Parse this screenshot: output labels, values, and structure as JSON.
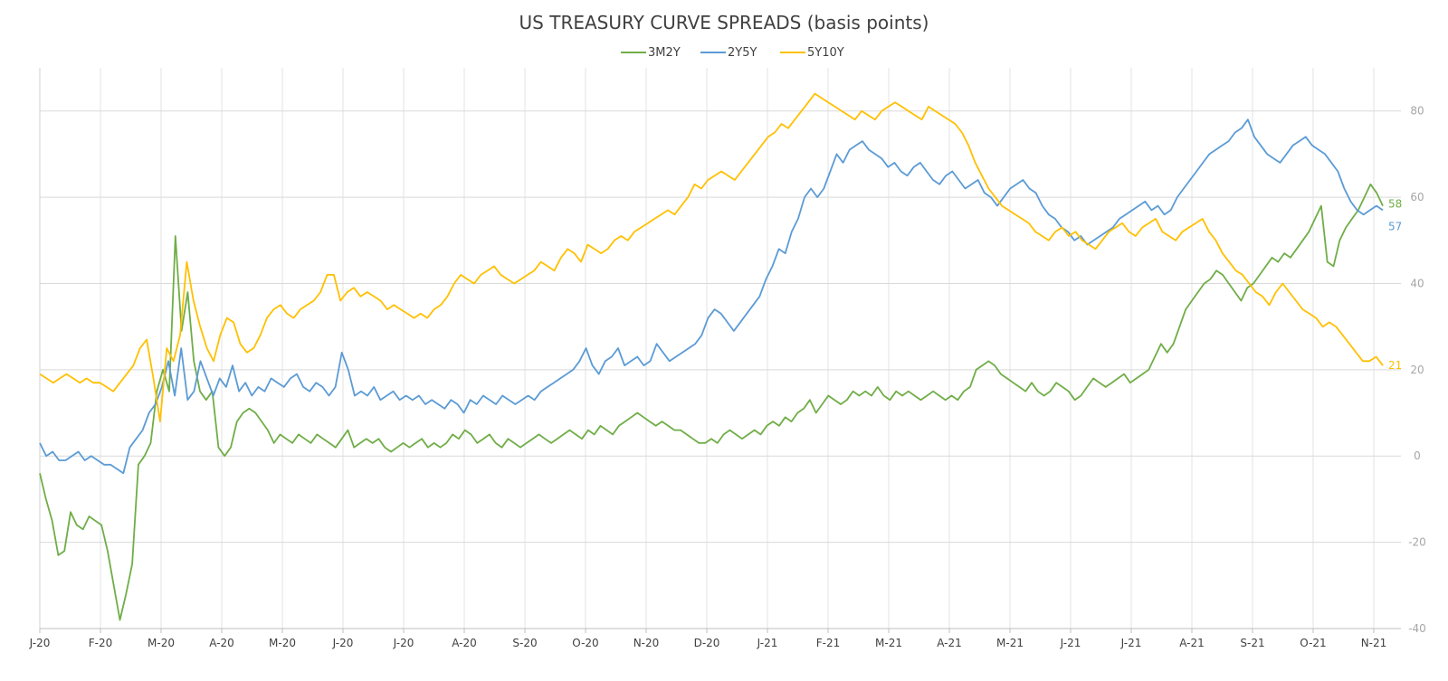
{
  "chart_data": {
    "type": "line",
    "title": "US TREASURY CURVE SPREADS (basis points)",
    "xlabel": "",
    "ylabel": "",
    "ylim": [
      -40,
      90
    ],
    "yticks": [
      80,
      60,
      40,
      20,
      0,
      -20,
      -40
    ],
    "grid": "horizontal and vertical",
    "legend_position": "top-center",
    "x_ticks": [
      "J-20",
      "F-20",
      "M-20",
      "A-20",
      "M-20",
      "J-20",
      "J-20",
      "A-20",
      "S-20",
      "O-20",
      "N-20",
      "D-20",
      "J-21",
      "F-21",
      "M-21",
      "A-21",
      "M-21",
      "J-21",
      "J-21",
      "A-21",
      "S-21",
      "O-21",
      "N-21"
    ],
    "series": [
      {
        "name": "3M2Y",
        "color": "#70ad47",
        "end_label": "58",
        "values": [
          -4,
          -10,
          -15,
          -23,
          -22,
          -13,
          -16,
          -17,
          -14,
          -15,
          -16,
          -22,
          -30,
          -38,
          -32,
          -25,
          -2,
          0,
          3,
          15,
          20,
          15,
          51,
          29,
          38,
          22,
          15,
          13,
          15,
          2,
          0,
          2,
          8,
          10,
          11,
          10,
          8,
          6,
          3,
          5,
          4,
          3,
          5,
          4,
          3,
          5,
          4,
          3,
          2,
          4,
          6,
          2,
          3,
          4,
          3,
          4,
          2,
          1,
          2,
          3,
          2,
          3,
          4,
          2,
          3,
          2,
          3,
          5,
          4,
          6,
          5,
          3,
          4,
          5,
          3,
          2,
          4,
          3,
          2,
          3,
          4,
          5,
          4,
          3,
          4,
          5,
          6,
          5,
          4,
          6,
          5,
          7,
          6,
          5,
          7,
          8,
          9,
          10,
          9,
          8,
          7,
          8,
          7,
          6,
          6,
          5,
          4,
          3,
          3,
          4,
          3,
          5,
          6,
          5,
          4,
          5,
          6,
          5,
          7,
          8,
          7,
          9,
          8,
          10,
          11,
          13,
          10,
          12,
          14,
          13,
          12,
          13,
          15,
          14,
          15,
          14,
          16,
          14,
          13,
          15,
          14,
          15,
          14,
          13,
          14,
          15,
          14,
          13,
          14,
          13,
          15,
          16,
          20,
          21,
          22,
          21,
          19,
          18,
          17,
          16,
          15,
          17,
          15,
          14,
          15,
          17,
          16,
          15,
          13,
          14,
          16,
          18,
          17,
          16,
          17,
          18,
          19,
          17,
          18,
          19,
          20,
          23,
          26,
          24,
          26,
          30,
          34,
          36,
          38,
          40,
          41,
          43,
          42,
          40,
          38,
          36,
          39,
          40,
          42,
          44,
          46,
          45,
          47,
          46,
          48,
          50,
          52,
          55,
          58,
          45,
          44,
          50,
          53,
          55,
          57,
          60,
          63,
          61,
          58
        ]
      },
      {
        "name": "2Y5Y",
        "color": "#5b9bd5",
        "end_label": "57",
        "values": [
          3,
          0,
          1,
          -1,
          -1,
          0,
          1,
          -1,
          0,
          -1,
          -2,
          -2,
          -3,
          -4,
          2,
          4,
          6,
          10,
          12,
          16,
          22,
          14,
          25,
          13,
          15,
          22,
          18,
          14,
          18,
          16,
          21,
          15,
          17,
          14,
          16,
          15,
          18,
          17,
          16,
          18,
          19,
          16,
          15,
          17,
          16,
          14,
          16,
          24,
          20,
          14,
          15,
          14,
          16,
          13,
          14,
          15,
          13,
          14,
          13,
          14,
          12,
          13,
          12,
          11,
          13,
          12,
          10,
          13,
          12,
          14,
          13,
          12,
          14,
          13,
          12,
          13,
          14,
          13,
          15,
          16,
          17,
          18,
          19,
          20,
          22,
          25,
          21,
          19,
          22,
          23,
          25,
          21,
          22,
          23,
          21,
          22,
          26,
          24,
          22,
          23,
          24,
          25,
          26,
          28,
          32,
          34,
          33,
          31,
          29,
          31,
          33,
          35,
          37,
          41,
          44,
          48,
          47,
          52,
          55,
          60,
          62,
          60,
          62,
          66,
          70,
          68,
          71,
          72,
          73,
          71,
          70,
          69,
          67,
          68,
          66,
          65,
          67,
          68,
          66,
          64,
          63,
          65,
          66,
          64,
          62,
          63,
          64,
          61,
          60,
          58,
          60,
          62,
          63,
          64,
          62,
          61,
          58,
          56,
          55,
          53,
          52,
          50,
          51,
          49,
          50,
          51,
          52,
          53,
          55,
          56,
          57,
          58,
          59,
          57,
          58,
          56,
          57,
          60,
          62,
          64,
          66,
          68,
          70,
          71,
          72,
          73,
          75,
          76,
          78,
          74,
          72,
          70,
          69,
          68,
          70,
          72,
          73,
          74,
          72,
          71,
          70,
          68,
          66,
          62,
          59,
          57,
          56,
          57,
          58,
          57
        ]
      },
      {
        "name": "5Y10Y",
        "color": "#ffc000",
        "end_label": "21",
        "values": [
          19,
          18,
          17,
          18,
          19,
          18,
          17,
          18,
          17,
          17,
          16,
          15,
          17,
          19,
          21,
          25,
          27,
          18,
          8,
          25,
          22,
          28,
          45,
          36,
          30,
          25,
          22,
          28,
          32,
          31,
          26,
          24,
          25,
          28,
          32,
          34,
          35,
          33,
          32,
          34,
          35,
          36,
          38,
          42,
          42,
          36,
          38,
          39,
          37,
          38,
          37,
          36,
          34,
          35,
          34,
          33,
          32,
          33,
          32,
          34,
          35,
          37,
          40,
          42,
          41,
          40,
          42,
          43,
          44,
          42,
          41,
          40,
          41,
          42,
          43,
          45,
          44,
          43,
          46,
          48,
          47,
          45,
          49,
          48,
          47,
          48,
          50,
          51,
          50,
          52,
          53,
          54,
          55,
          56,
          57,
          56,
          58,
          60,
          63,
          62,
          64,
          65,
          66,
          65,
          64,
          66,
          68,
          70,
          72,
          74,
          75,
          77,
          76,
          78,
          80,
          82,
          84,
          83,
          82,
          81,
          80,
          79,
          78,
          80,
          79,
          78,
          80,
          81,
          82,
          81,
          80,
          79,
          78,
          81,
          80,
          79,
          78,
          77,
          75,
          72,
          68,
          65,
          62,
          60,
          58,
          57,
          56,
          55,
          54,
          52,
          51,
          50,
          52,
          53,
          51,
          52,
          50,
          49,
          48,
          50,
          52,
          53,
          54,
          52,
          51,
          53,
          54,
          55,
          52,
          51,
          50,
          52,
          53,
          54,
          55,
          52,
          50,
          47,
          45,
          43,
          42,
          40,
          38,
          37,
          35,
          38,
          40,
          38,
          36,
          34,
          33,
          32,
          30,
          31,
          30,
          28,
          26,
          24,
          22,
          22,
          23,
          21
        ]
      }
    ]
  }
}
